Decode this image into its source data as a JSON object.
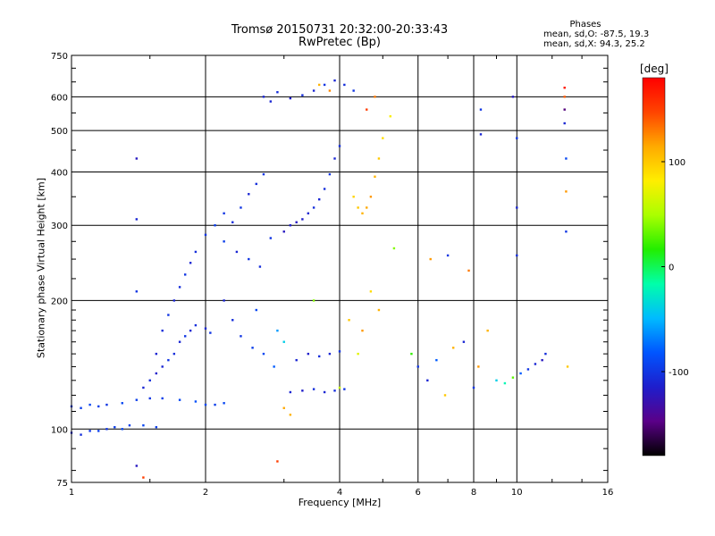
{
  "header": {
    "title_line1": "Tromsø 20150731 20:32:00-20:33:43",
    "title_line2": "RwPretec (Bp)",
    "stats_title": "Phases",
    "stats_o": "mean, sd,O: -87.5, 19.3",
    "stats_x": "mean, sd,X:  94.3, 25.2"
  },
  "colorbar": {
    "unit": "[deg]",
    "ticks": [
      {
        "value": 100,
        "label": "100"
      },
      {
        "value": 0,
        "label": "0"
      },
      {
        "value": -100,
        "label": "-100"
      }
    ],
    "range": [
      -180,
      180
    ],
    "colors": [
      "#000000",
      "#5a0088",
      "#1e1ecc",
      "#0055ff",
      "#00bbff",
      "#00ffaa",
      "#22ee00",
      "#aaff00",
      "#ffee00",
      "#ffaa00",
      "#ff4400",
      "#ff0000"
    ]
  },
  "chart_data": {
    "type": "scatter",
    "xlabel": "Frequency [MHz]",
    "ylabel": "Stationary phase Virtual Height [km]",
    "x_scale": "log",
    "y_scale": "log",
    "xlim": [
      1,
      16
    ],
    "ylim": [
      75,
      750
    ],
    "x_ticks": [
      {
        "value": 1,
        "label": "1"
      },
      {
        "value": 2,
        "label": "2"
      },
      {
        "value": 4,
        "label": "4"
      },
      {
        "value": 6,
        "label": "6"
      },
      {
        "value": 8,
        "label": "8"
      },
      {
        "value": 10,
        "label": "10"
      },
      {
        "value": 16,
        "label": "16"
      }
    ],
    "y_ticks": [
      {
        "value": 75,
        "label": "75"
      },
      {
        "value": 100,
        "label": "100"
      },
      {
        "value": 200,
        "label": "200"
      },
      {
        "value": 300,
        "label": "300"
      },
      {
        "value": 400,
        "label": "400"
      },
      {
        "value": 500,
        "label": "500"
      },
      {
        "value": 600,
        "label": "600"
      },
      {
        "value": 750,
        "label": "750"
      }
    ],
    "grid": true,
    "color_variable": "phase [deg]",
    "series": [
      {
        "points": [
          [
            1.0,
            98,
            -110
          ],
          [
            1.05,
            97,
            -105
          ],
          [
            1.1,
            99,
            -100
          ],
          [
            1.15,
            99,
            -95
          ],
          [
            1.2,
            100,
            -100
          ],
          [
            1.25,
            101,
            -95
          ],
          [
            1.3,
            100,
            -90
          ],
          [
            1.35,
            102,
            -95
          ],
          [
            1.45,
            102,
            -90
          ],
          [
            1.55,
            101,
            -95
          ],
          [
            1.0,
            113,
            -100
          ],
          [
            1.05,
            112,
            -95
          ],
          [
            1.1,
            114,
            -90
          ],
          [
            1.15,
            113,
            -95
          ],
          [
            1.2,
            114,
            -100
          ],
          [
            1.3,
            115,
            -90
          ],
          [
            1.4,
            117,
            -95
          ],
          [
            1.5,
            118,
            -100
          ],
          [
            1.6,
            118,
            -95
          ],
          [
            1.75,
            117,
            -90
          ],
          [
            1.9,
            116,
            -85
          ],
          [
            2.0,
            114,
            -90
          ],
          [
            2.1,
            114,
            -95
          ],
          [
            2.2,
            115,
            -90
          ],
          [
            1.45,
            125,
            -110
          ],
          [
            1.5,
            130,
            -105
          ],
          [
            1.55,
            135,
            -115
          ],
          [
            1.6,
            140,
            -110
          ],
          [
            1.65,
            145,
            -100
          ],
          [
            1.7,
            150,
            -105
          ],
          [
            1.75,
            160,
            -110
          ],
          [
            1.8,
            165,
            -100
          ],
          [
            1.85,
            170,
            -110
          ],
          [
            1.9,
            175,
            -105
          ],
          [
            2.0,
            172,
            -110
          ],
          [
            2.05,
            168,
            -100
          ],
          [
            1.55,
            150,
            -110
          ],
          [
            1.6,
            170,
            -105
          ],
          [
            1.65,
            185,
            -100
          ],
          [
            1.7,
            200,
            -110
          ],
          [
            1.75,
            215,
            -105
          ],
          [
            1.8,
            230,
            -100
          ],
          [
            1.85,
            245,
            -110
          ],
          [
            1.9,
            260,
            -105
          ],
          [
            2.0,
            285,
            -100
          ],
          [
            2.1,
            300,
            -95
          ],
          [
            2.2,
            320,
            -100
          ],
          [
            2.3,
            305,
            -105
          ],
          [
            2.4,
            330,
            -100
          ],
          [
            2.5,
            355,
            -110
          ],
          [
            2.6,
            375,
            -105
          ],
          [
            2.7,
            395,
            -100
          ],
          [
            2.2,
            275,
            -95
          ],
          [
            2.35,
            260,
            -110
          ],
          [
            2.5,
            250,
            -100
          ],
          [
            2.65,
            240,
            -105
          ],
          [
            2.8,
            280,
            -100
          ],
          [
            2.2,
            200,
            -110
          ],
          [
            2.3,
            180,
            -105
          ],
          [
            2.4,
            165,
            -100
          ],
          [
            2.55,
            155,
            -95
          ],
          [
            2.7,
            150,
            -90
          ],
          [
            2.85,
            140,
            -80
          ],
          [
            2.9,
            170,
            -60
          ],
          [
            3.0,
            160,
            -40
          ],
          [
            2.6,
            190,
            -90
          ],
          [
            2.7,
            600,
            -110
          ],
          [
            2.9,
            615,
            -105
          ],
          [
            3.1,
            595,
            -115
          ],
          [
            3.3,
            605,
            -105
          ],
          [
            3.5,
            620,
            -110
          ],
          [
            3.7,
            640,
            -100
          ],
          [
            3.9,
            655,
            -110
          ],
          [
            4.1,
            640,
            -105
          ],
          [
            4.3,
            620,
            -100
          ],
          [
            2.8,
            585,
            -110
          ],
          [
            3.0,
            290,
            -120
          ],
          [
            3.1,
            300,
            -115
          ],
          [
            3.2,
            305,
            -120
          ],
          [
            3.3,
            310,
            -115
          ],
          [
            3.4,
            320,
            -110
          ],
          [
            3.5,
            330,
            -105
          ],
          [
            3.6,
            345,
            -110
          ],
          [
            3.7,
            365,
            -105
          ],
          [
            3.8,
            395,
            -100
          ],
          [
            3.9,
            430,
            -110
          ],
          [
            4.0,
            460,
            -105
          ],
          [
            3.2,
            145,
            -110
          ],
          [
            3.4,
            150,
            -115
          ],
          [
            3.6,
            148,
            -105
          ],
          [
            3.8,
            150,
            -110
          ],
          [
            4.0,
            152,
            -100
          ],
          [
            3.1,
            122,
            -110
          ],
          [
            3.3,
            123,
            -115
          ],
          [
            3.5,
            124,
            -105
          ],
          [
            3.7,
            122,
            -110
          ],
          [
            3.9,
            123,
            -105
          ],
          [
            4.1,
            124,
            -100
          ],
          [
            4.3,
            350,
            95
          ],
          [
            4.4,
            330,
            100
          ],
          [
            4.5,
            320,
            110
          ],
          [
            4.6,
            330,
            115
          ],
          [
            4.7,
            350,
            120
          ],
          [
            4.8,
            390,
            110
          ],
          [
            4.9,
            430,
            100
          ],
          [
            5.0,
            480,
            90
          ],
          [
            5.2,
            540,
            80
          ],
          [
            4.6,
            560,
            150
          ],
          [
            4.8,
            600,
            130
          ],
          [
            3.6,
            640,
            110
          ],
          [
            3.8,
            620,
            125
          ],
          [
            4.2,
            180,
            100
          ],
          [
            4.5,
            170,
            120
          ],
          [
            4.7,
            210,
            90
          ],
          [
            4.9,
            190,
            110
          ],
          [
            4.4,
            150,
            70
          ],
          [
            4.0,
            125,
            60
          ],
          [
            3.5,
            200,
            40
          ],
          [
            3.0,
            112,
            115
          ],
          [
            3.1,
            108,
            110
          ],
          [
            5.8,
            150,
            20
          ],
          [
            6.0,
            140,
            -100
          ],
          [
            6.3,
            130,
            -110
          ],
          [
            6.6,
            145,
            -80
          ],
          [
            6.9,
            120,
            100
          ],
          [
            7.2,
            155,
            110
          ],
          [
            7.6,
            160,
            -110
          ],
          [
            8.2,
            140,
            120
          ],
          [
            8.6,
            170,
            110
          ],
          [
            8.0,
            125,
            -100
          ],
          [
            9.0,
            130,
            -40
          ],
          [
            9.4,
            128,
            -20
          ],
          [
            9.8,
            132,
            30
          ],
          [
            10.2,
            135,
            -80
          ],
          [
            10.6,
            138,
            -100
          ],
          [
            11.0,
            142,
            -110
          ],
          [
            11.4,
            145,
            -120
          ],
          [
            11.6,
            150,
            -105
          ],
          [
            8.3,
            560,
            -100
          ],
          [
            8.3,
            490,
            -110
          ],
          [
            9.8,
            600,
            -120
          ],
          [
            10.0,
            480,
            -100
          ],
          [
            10.0,
            330,
            -110
          ],
          [
            10.0,
            255,
            -105
          ],
          [
            12.8,
            630,
            170
          ],
          [
            12.8,
            600,
            140
          ],
          [
            12.8,
            560,
            -150
          ],
          [
            12.8,
            520,
            -110
          ],
          [
            12.9,
            430,
            -90
          ],
          [
            12.9,
            360,
            120
          ],
          [
            12.9,
            290,
            -100
          ],
          [
            13.0,
            140,
            100
          ],
          [
            1.4,
            430,
            -120
          ],
          [
            1.4,
            310,
            -110
          ],
          [
            1.4,
            210,
            -100
          ],
          [
            1.4,
            82,
            -120
          ],
          [
            1.45,
            77,
            150
          ],
          [
            2.9,
            84,
            150
          ],
          [
            5.3,
            265,
            40
          ],
          [
            6.4,
            250,
            120
          ],
          [
            7.0,
            255,
            -100
          ],
          [
            7.8,
            235,
            130
          ]
        ]
      }
    ]
  }
}
